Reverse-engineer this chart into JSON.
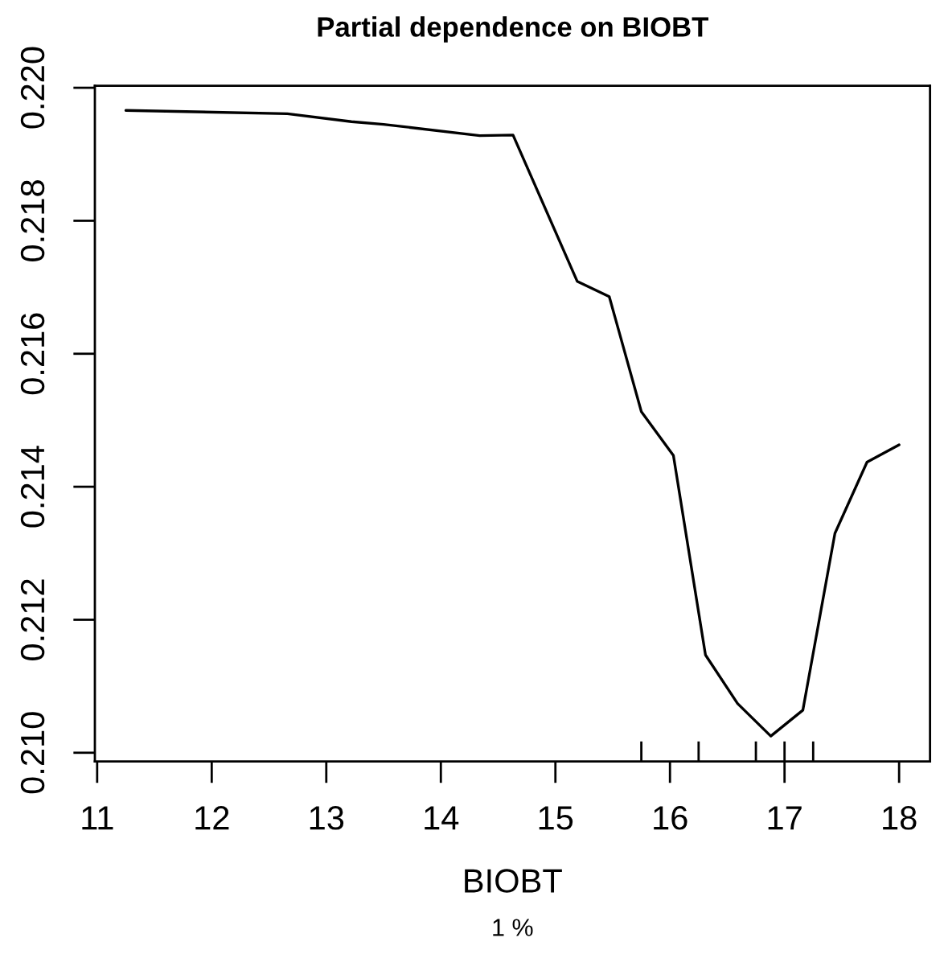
{
  "chart_data": {
    "type": "line",
    "title": "Partial dependence on BIOBT",
    "xlabel": "BIOBT",
    "annotations": [
      "1 %"
    ],
    "series": [
      {
        "color": "#000000",
        "x": [
          11.25,
          12.66,
          13.22,
          13.5,
          14.34,
          14.63,
          15.19,
          15.47,
          15.75,
          16.03,
          16.31,
          16.59,
          16.88,
          17.16,
          17.44,
          17.72,
          18.0
        ],
        "values": [
          0.21966,
          0.21961,
          0.21949,
          0.21945,
          0.21928,
          0.21929,
          0.21709,
          0.21686,
          0.21513,
          0.21447,
          0.21147,
          0.21074,
          0.21025,
          0.21064,
          0.2133,
          0.21437,
          0.21463
        ]
      },
      {
        "type": "bar",
        "color": "#000000",
        "x": [
          15.75,
          16.25,
          16.75,
          17.0,
          17.25
        ],
        "base": [
          0.20987,
          0.20987,
          0.20987,
          0.20987,
          0.20987
        ],
        "values": [
          0.0003,
          0.0003,
          0.0003,
          0.0003,
          0.0003
        ]
      }
    ],
    "xlim": [
      10.98,
      18.27
    ],
    "xticks": [
      11,
      12,
      13,
      14,
      15,
      16,
      17,
      18
    ],
    "ylim": [
      0.20987,
      0.22003
    ],
    "yticks": [
      {
        "value": 0.21,
        "label": "0.210"
      },
      {
        "value": 0.212,
        "label": "0.212"
      },
      {
        "value": 0.214,
        "label": "0.214"
      },
      {
        "value": 0.216,
        "label": "0.216"
      },
      {
        "value": 0.218,
        "label": "0.218"
      },
      {
        "value": 0.22,
        "label": "0.220"
      }
    ]
  }
}
